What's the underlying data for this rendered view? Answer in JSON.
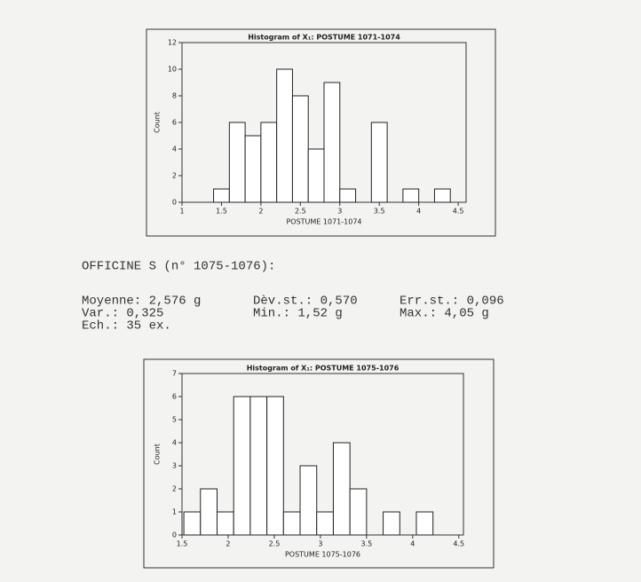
{
  "chart_data": [
    {
      "type": "histogram",
      "title": "Histogram of X₁: POSTUME 1071-1074",
      "xlabel": "POSTUME 1071-1074",
      "ylabel": "Count",
      "bins": [
        1.4,
        1.6,
        1.8,
        2.0,
        2.2,
        2.4,
        2.6,
        2.8,
        3.0,
        3.2,
        3.4,
        3.6,
        3.8,
        4.0,
        4.2,
        4.4
      ],
      "values": [
        1,
        6,
        5,
        6,
        10,
        8,
        4,
        9,
        1,
        0,
        6,
        0,
        1,
        0,
        1
      ],
      "color": "#ffffff",
      "xlim": [
        1,
        4.6
      ],
      "xticks": [
        1,
        1.5,
        2,
        2.5,
        3,
        3.5,
        4,
        4.5
      ],
      "ylim": [
        0,
        12
      ],
      "yticks": [
        0,
        2,
        4,
        6,
        8,
        10,
        12
      ]
    },
    {
      "type": "histogram",
      "title": "Histogram of X₁: POSTUME 1075-1076",
      "xlabel": "POSTUME 1075-1076",
      "ylabel": "Count",
      "bins": [
        1.52,
        1.7,
        1.88,
        2.06,
        2.24,
        2.42,
        2.6,
        2.78,
        2.96,
        3.14,
        3.32,
        3.5,
        3.68,
        3.86,
        4.04,
        4.22
      ],
      "values": [
        1,
        2,
        1,
        6,
        6,
        6,
        1,
        3,
        1,
        4,
        2,
        0,
        1,
        0,
        1
      ],
      "color": "#ffffff",
      "xlim": [
        1.5,
        4.55
      ],
      "xticks": [
        1.5,
        2,
        2.5,
        3,
        3.5,
        4,
        4.5
      ],
      "ylim": [
        0,
        7
      ],
      "yticks": [
        0,
        1,
        2,
        3,
        4,
        5,
        6,
        7
      ]
    }
  ],
  "stats": {
    "heading": "OFFICINE S (n° 1075-1076):",
    "rows": [
      [
        "Moyenne: 2,576 g",
        "Dèv.st.: 0,570",
        "Err.st.: 0,096"
      ],
      [
        "Var.: 0,325",
        "Min.: 1,52 g",
        "Max.: 4,05 g"
      ],
      [
        "Ech.: 35 ex."
      ]
    ]
  }
}
